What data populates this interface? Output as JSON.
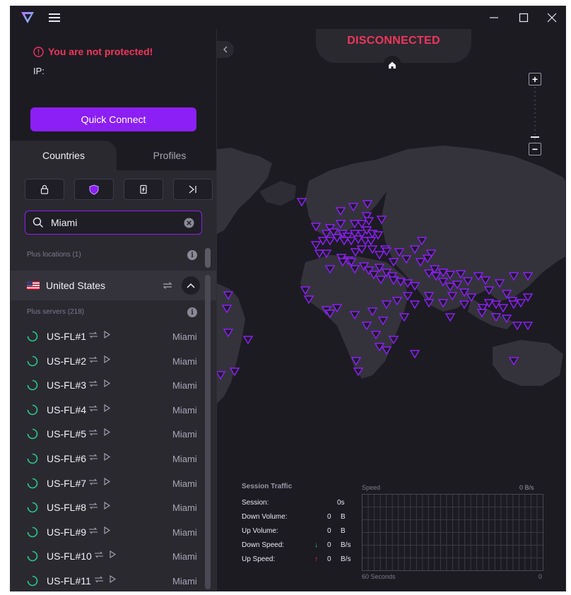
{
  "window": {
    "title": "Proton VPN",
    "controls": [
      "minimize",
      "maximize",
      "close"
    ]
  },
  "status": {
    "warning": "You are not protected!",
    "ip_label": "IP:",
    "ip_value": "",
    "connection": "DISCONNECTED"
  },
  "quick_connect_label": "Quick Connect",
  "tabs": {
    "countries": "Countries",
    "profiles": "Profiles"
  },
  "filters": [
    "lock-icon",
    "shield-icon",
    "secure-core-icon",
    "tor-icon"
  ],
  "search": {
    "value": "Miami",
    "placeholder": "Search"
  },
  "sections": {
    "plus_locations": "Plus locations (1)",
    "plus_servers": "Plus servers (218)"
  },
  "country": {
    "name": "United States",
    "flag": "us-flag-icon"
  },
  "servers": [
    {
      "name": "US-FL#1",
      "city": "Miami"
    },
    {
      "name": "US-FL#2",
      "city": "Miami"
    },
    {
      "name": "US-FL#3",
      "city": "Miami"
    },
    {
      "name": "US-FL#4",
      "city": "Miami"
    },
    {
      "name": "US-FL#5",
      "city": "Miami"
    },
    {
      "name": "US-FL#6",
      "city": "Miami"
    },
    {
      "name": "US-FL#7",
      "city": "Miami"
    },
    {
      "name": "US-FL#8",
      "city": "Miami"
    },
    {
      "name": "US-FL#9",
      "city": "Miami"
    },
    {
      "name": "US-FL#10",
      "city": "Miami"
    },
    {
      "name": "US-FL#11",
      "city": "Miami"
    }
  ],
  "zoom": {
    "in": "+",
    "out": "−"
  },
  "traffic": {
    "title": "Session Traffic",
    "rows": [
      {
        "label": "Session:",
        "value": "0s",
        "unit": ""
      },
      {
        "label": "Down Volume:",
        "value": "0",
        "unit": "B"
      },
      {
        "label": "Up Volume:",
        "value": "0",
        "unit": "B"
      },
      {
        "label": "Down Speed:",
        "value": "0",
        "unit": "B/s"
      },
      {
        "label": "Up Speed:",
        "value": "0",
        "unit": "B/s"
      }
    ],
    "graph": {
      "label": "Speed",
      "max": "0  B/s",
      "x_left": "60 Seconds",
      "x_right": "0"
    }
  },
  "colors": {
    "accent": "#8b1ff5",
    "danger": "#f0365c",
    "marker": "#8b1ff5",
    "background": "#1c1b22",
    "panel": "#2a2930"
  }
}
